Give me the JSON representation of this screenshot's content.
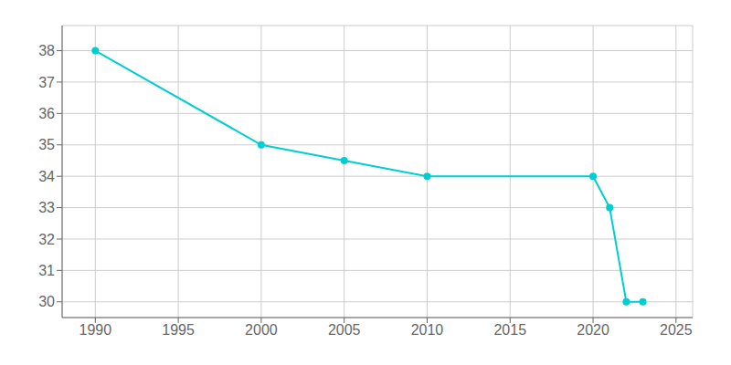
{
  "chart_data": {
    "type": "line",
    "x": [
      1990,
      2000,
      2005,
      2010,
      2020,
      2021,
      2022,
      2023
    ],
    "values": [
      38,
      35,
      34.5,
      34,
      34,
      33,
      30,
      30
    ],
    "color": "#00CED1",
    "xlim": [
      1988,
      2026
    ],
    "ylim": [
      29.5,
      38.8
    ],
    "xticks": [
      1990,
      1995,
      2000,
      2005,
      2010,
      2015,
      2020,
      2025
    ],
    "yticks": [
      30,
      31,
      32,
      33,
      34,
      35,
      36,
      37,
      38
    ],
    "grid": true,
    "marker": "circle"
  }
}
